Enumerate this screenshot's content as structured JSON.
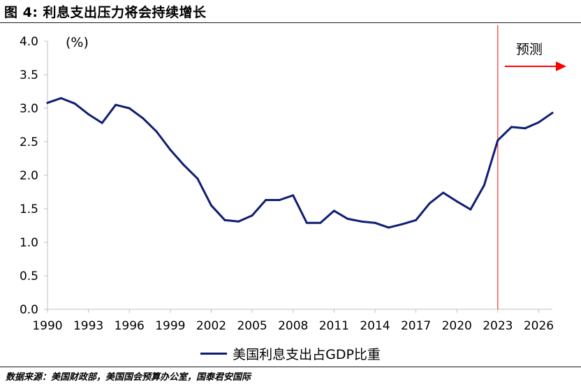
{
  "figure": {
    "title": "图 4:  利息支出压力将会持续增长",
    "source": "数据来源：美国财政部，美国国会预算办公室，国泰君安国际"
  },
  "colors": {
    "series": "#0e1e73",
    "forecast": "#ff0000",
    "axis": "#bfbfbf",
    "text": "#000000"
  },
  "chart_data": {
    "type": "line",
    "title": "",
    "xlabel": "",
    "ylabel": "(%)",
    "xlim": [
      1990,
      2027
    ],
    "ylim": [
      0,
      4
    ],
    "xticks": [
      1990,
      1993,
      1996,
      1999,
      2002,
      2005,
      2008,
      2011,
      2014,
      2017,
      2020,
      2023,
      2026
    ],
    "yticks": [
      "0.0",
      "0.5",
      "1.0",
      "1.5",
      "2.0",
      "2.5",
      "3.0",
      "3.5",
      "4.0"
    ],
    "grid": false,
    "legend_position": "bottom",
    "annotation": {
      "label": "预测",
      "x": 2023
    },
    "series": [
      {
        "name": "美国利息支出占GDP比重",
        "x": [
          1990,
          1991,
          1992,
          1993,
          1994,
          1995,
          1996,
          1997,
          1998,
          1999,
          2000,
          2001,
          2002,
          2003,
          2004,
          2005,
          2006,
          2007,
          2008,
          2009,
          2010,
          2011,
          2012,
          2013,
          2014,
          2015,
          2016,
          2017,
          2018,
          2019,
          2020,
          2021,
          2022,
          2023,
          2024,
          2025,
          2026,
          2027
        ],
        "values": [
          3.08,
          3.15,
          3.07,
          2.91,
          2.78,
          3.05,
          3.0,
          2.85,
          2.65,
          2.38,
          2.15,
          1.95,
          1.55,
          1.33,
          1.31,
          1.4,
          1.63,
          1.63,
          1.7,
          1.29,
          1.29,
          1.47,
          1.35,
          1.31,
          1.29,
          1.22,
          1.27,
          1.33,
          1.58,
          1.74,
          1.61,
          1.49,
          1.85,
          2.52,
          2.72,
          2.7,
          2.79,
          2.93
        ]
      }
    ]
  }
}
